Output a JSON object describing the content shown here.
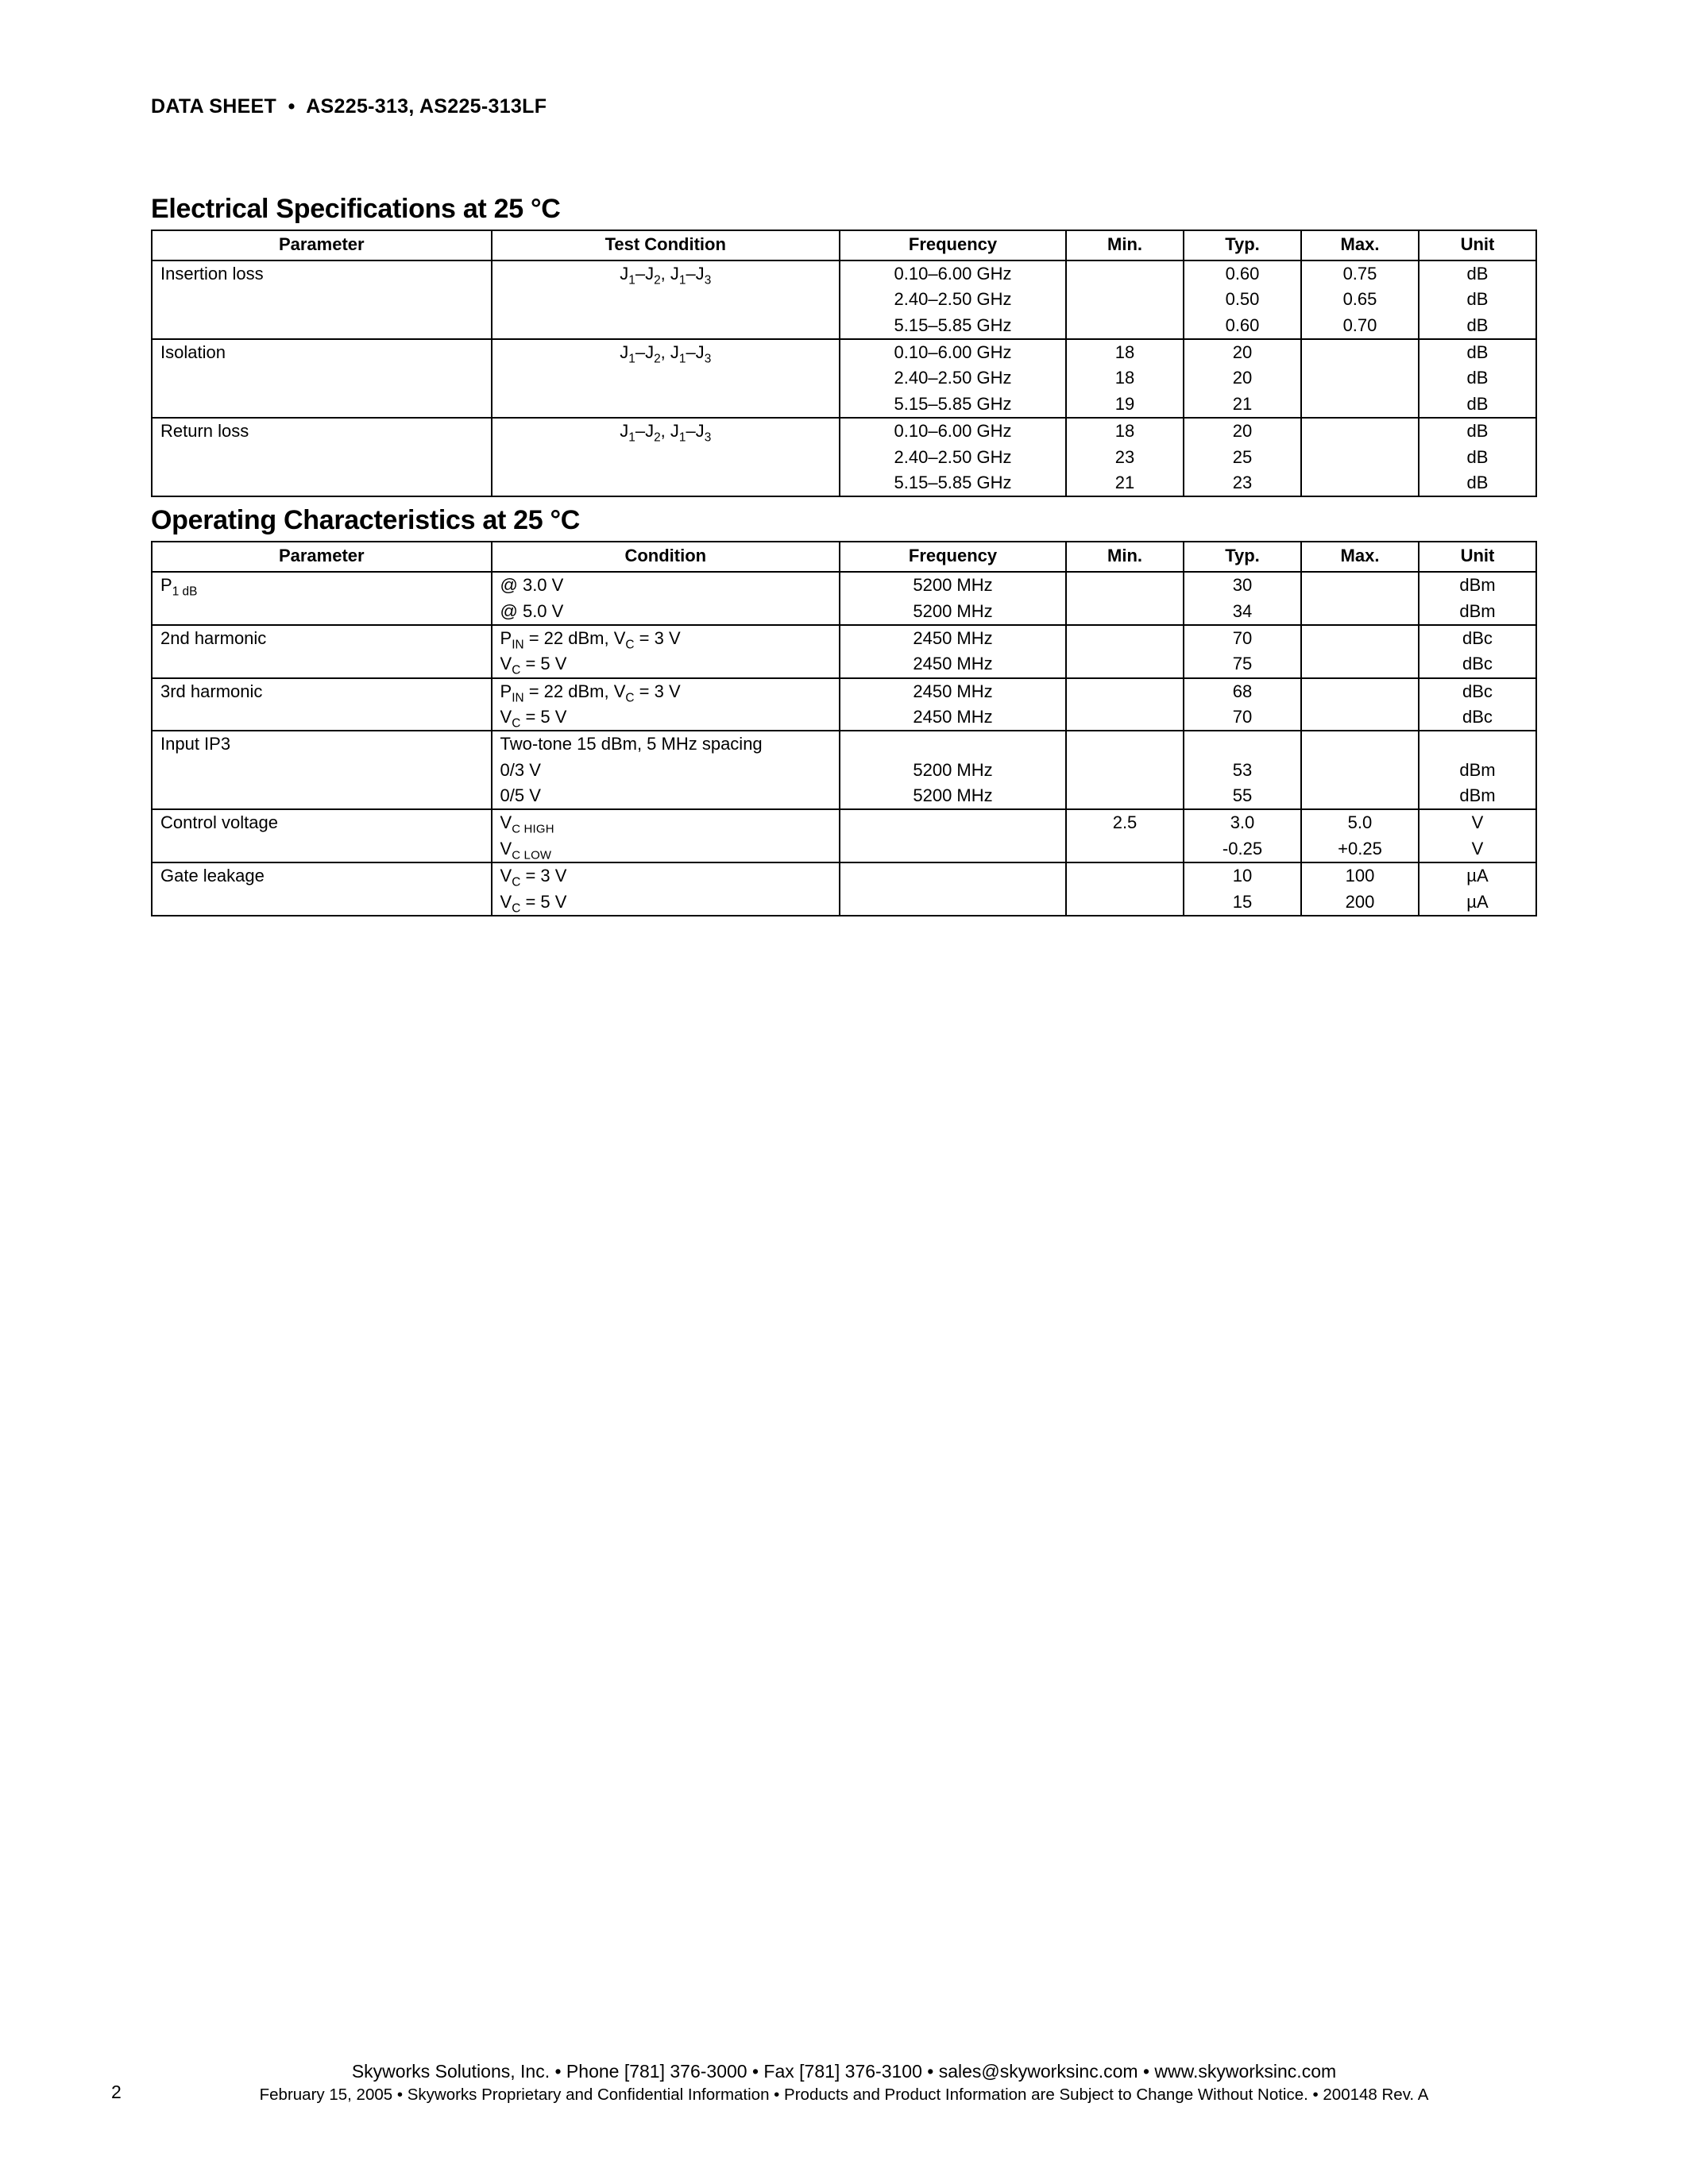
{
  "header": {
    "prefix": "DATA SHEET",
    "parts": "AS225-313, AS225-313LF"
  },
  "sections": {
    "elec": {
      "title": "Electrical Specifications at 25 °C",
      "columns": [
        "Parameter",
        "Test Condition",
        "Frequency",
        "Min.",
        "Typ.",
        "Max.",
        "Unit"
      ]
    },
    "oper": {
      "title": "Operating Characteristics at 25 °C",
      "columns": [
        "Parameter",
        "Condition",
        "Frequency",
        "Min.",
        "Typ.",
        "Max.",
        "Unit"
      ]
    }
  },
  "elec_rows": {
    "insertion": {
      "param": "Insertion loss",
      "freq": [
        "0.10–6.00 GHz",
        "2.40–2.50 GHz",
        "5.15–5.85 GHz"
      ],
      "min": [
        "",
        "",
        ""
      ],
      "typ": [
        "0.60",
        "0.50",
        "0.60"
      ],
      "max": [
        "0.75",
        "0.65",
        "0.70"
      ],
      "unit": [
        "dB",
        "dB",
        "dB"
      ]
    },
    "isolation": {
      "param": "Isolation",
      "freq": [
        "0.10–6.00 GHz",
        "2.40–2.50 GHz",
        "5.15–5.85 GHz"
      ],
      "min": [
        "18",
        "18",
        "19"
      ],
      "typ": [
        "20",
        "20",
        "21"
      ],
      "max": [
        "",
        "",
        ""
      ],
      "unit": [
        "dB",
        "dB",
        "dB"
      ]
    },
    "return": {
      "param": "Return loss",
      "freq": [
        "0.10–6.00 GHz",
        "2.40–2.50 GHz",
        "5.15–5.85 GHz"
      ],
      "min": [
        "18",
        "23",
        "21"
      ],
      "typ": [
        "20",
        "25",
        "23"
      ],
      "max": [
        "",
        "",
        ""
      ],
      "unit": [
        "dB",
        "dB",
        "dB"
      ]
    }
  },
  "oper_rows": {
    "p1db": {
      "param_html": "P<span class=\"sub\">1 dB</span>",
      "cond": [
        "@ 3.0 V",
        "@ 5.0 V"
      ],
      "freq": [
        "5200 MHz",
        "5200 MHz"
      ],
      "min": [
        "",
        ""
      ],
      "typ": [
        "30",
        "34"
      ],
      "max": [
        "",
        ""
      ],
      "unit": [
        "dBm",
        "dBm"
      ]
    },
    "h2": {
      "param": "2nd harmonic",
      "cond_html": [
        "P<span class=\"sub\">IN</span> = 22 dBm, V<span class=\"sub\">C</span> = 3 V",
        "V<span class=\"sub\">C</span> = 5 V"
      ],
      "freq": [
        "2450 MHz",
        "2450 MHz"
      ],
      "min": [
        "",
        ""
      ],
      "typ": [
        "70",
        "75"
      ],
      "max": [
        "",
        ""
      ],
      "unit": [
        "dBc",
        "dBc"
      ]
    },
    "h3": {
      "param": "3rd harmonic",
      "cond_html": [
        "P<span class=\"sub\">IN</span> = 22 dBm, V<span class=\"sub\">C</span> = 3 V",
        "V<span class=\"sub\">C</span> = 5 V"
      ],
      "freq": [
        "2450 MHz",
        "2450 MHz"
      ],
      "min": [
        "",
        ""
      ],
      "typ": [
        "68",
        "70"
      ],
      "max": [
        "",
        ""
      ],
      "unit": [
        "dBc",
        "dBc"
      ]
    },
    "ip3": {
      "param": "Input IP3",
      "cond": [
        "Two-tone 15 dBm, 5 MHz spacing",
        "0/3 V",
        "0/5 V"
      ],
      "freq": [
        "",
        "5200 MHz",
        "5200 MHz"
      ],
      "min": [
        "",
        "",
        ""
      ],
      "typ": [
        "",
        "53",
        "55"
      ],
      "max": [
        "",
        "",
        ""
      ],
      "unit": [
        "",
        "dBm",
        "dBm"
      ]
    },
    "ctrl": {
      "param": "Control voltage",
      "cond_html": [
        "V<span class=\"subcaps\">C HIGH</span>",
        "V<span class=\"subcaps\">C LOW</span>"
      ],
      "freq": [
        "",
        ""
      ],
      "min": [
        "2.5",
        ""
      ],
      "typ": [
        "3.0",
        "-0.25"
      ],
      "max": [
        "5.0",
        "+0.25"
      ],
      "unit": [
        "V",
        "V"
      ]
    },
    "gate": {
      "param": "Gate leakage",
      "cond_html": [
        "V<span class=\"sub\">C</span> = 3 V",
        "V<span class=\"sub\">C</span> = 5 V"
      ],
      "freq": [
        "",
        ""
      ],
      "min": [
        "",
        ""
      ],
      "typ": [
        "10",
        "15"
      ],
      "max": [
        "100",
        "200"
      ],
      "unit": [
        "µA",
        "µA"
      ]
    }
  },
  "test_cond_jj": "J<span class=\"sub\">1</span>–J<span class=\"sub\">2</span>, J<span class=\"sub\">1</span>–J<span class=\"sub\">3</span>",
  "footer": {
    "line1": "Skyworks Solutions, Inc.  •  Phone [781] 376-3000  •  Fax [781] 376-3100  •  sales@skyworksinc.com  •  www.skyworksinc.com",
    "line2": "February 15, 2005  •  Skyworks Proprietary and Confidential Information  •  Products and Product Information are Subject to Change Without Notice.  •  200148 Rev. A",
    "page": "2"
  }
}
